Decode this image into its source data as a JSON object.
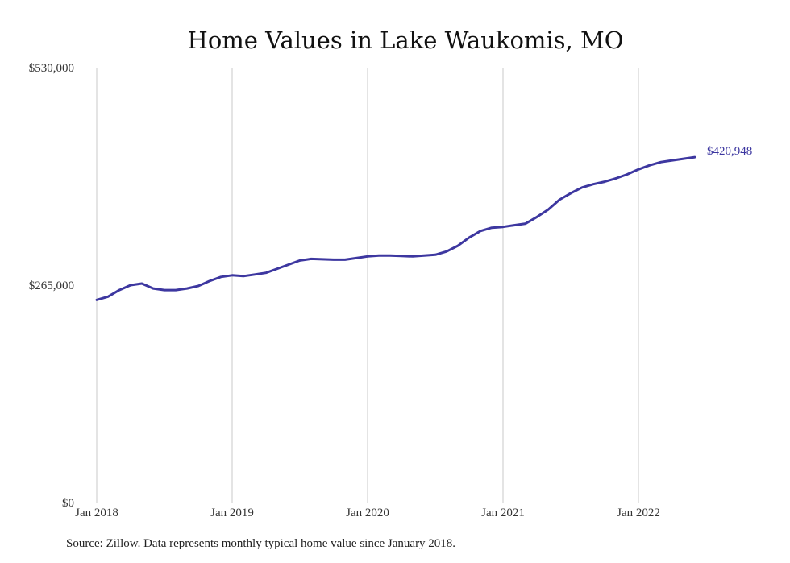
{
  "chart_data": {
    "type": "line",
    "title": "Home Values in Lake Waukomis, MO",
    "xlabel": "",
    "ylabel": "",
    "x_ticks": [
      "Jan 2018",
      "Jan 2019",
      "Jan 2020",
      "Jan 2021",
      "Jan 2022"
    ],
    "y_ticks": [
      "$530,000",
      "$265,000",
      "$0"
    ],
    "ylim": [
      0,
      530000
    ],
    "grid": "vertical lines at each January",
    "end_label": "$420,948",
    "color": "#3d37a0",
    "series": [
      {
        "x": [
          "2018-01",
          "2018-02",
          "2018-03",
          "2018-04",
          "2018-05",
          "2018-06",
          "2018-07",
          "2018-08",
          "2018-09",
          "2018-10",
          "2018-11",
          "2018-12",
          "2019-01",
          "2019-02",
          "2019-03",
          "2019-04",
          "2019-05",
          "2019-06",
          "2019-07",
          "2019-08",
          "2019-09",
          "2019-10",
          "2019-11",
          "2019-12",
          "2020-01",
          "2020-02",
          "2020-03",
          "2020-04",
          "2020-05",
          "2020-06",
          "2020-07",
          "2020-08",
          "2020-09",
          "2020-10",
          "2020-11",
          "2020-12",
          "2021-01",
          "2021-02",
          "2021-03",
          "2021-04",
          "2021-05",
          "2021-06",
          "2021-07",
          "2021-08",
          "2021-09",
          "2021-10",
          "2021-11",
          "2021-12",
          "2022-01",
          "2022-02",
          "2022-03",
          "2022-04",
          "2022-05",
          "2022-06"
        ],
        "values": [
          247000,
          251000,
          259000,
          265000,
          267000,
          261000,
          259000,
          259000,
          261000,
          264000,
          270000,
          275000,
          277000,
          276000,
          278000,
          280000,
          285000,
          290000,
          295000,
          297000,
          296500,
          296000,
          296000,
          298000,
          300000,
          301000,
          301000,
          300500,
          300000,
          301000,
          302000,
          306000,
          313000,
          323000,
          331000,
          335000,
          336000,
          338000,
          340000,
          348000,
          357000,
          369000,
          377000,
          384000,
          388000,
          391000,
          395000,
          400000,
          406000,
          411000,
          415000,
          417000,
          419000,
          420948
        ]
      }
    ]
  },
  "source": "Source: Zillow. Data represents monthly typical home value since January 2018."
}
